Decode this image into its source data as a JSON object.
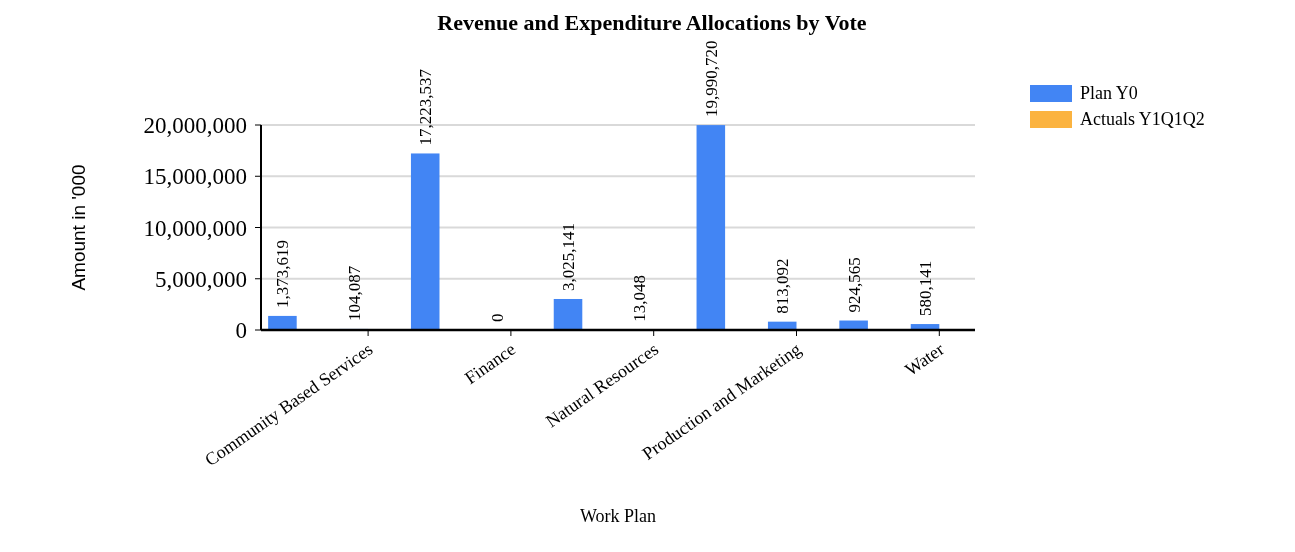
{
  "chart_data": {
    "type": "bar",
    "title": "Revenue and Expenditure Allocations by Vote",
    "xlabel": "Work Plan",
    "ylabel": "Amount in '000",
    "categories": [
      null,
      "Community Based Services",
      null,
      "Finance",
      null,
      "Natural Resources",
      null,
      "Production and Marketing",
      null,
      "Water"
    ],
    "series": [
      {
        "name": "Plan Y0",
        "color": "#4285f4",
        "values": [
          1373619,
          104087,
          17223537,
          0,
          3025141,
          13048,
          19990720,
          813092,
          924565,
          580141
        ],
        "value_labels": [
          "1,373,619",
          "104,087",
          "17,223,537",
          "0",
          "3,025,141",
          "13,048",
          "19,990,720",
          "813,092",
          "924,565",
          "580,141"
        ]
      },
      {
        "name": "Actuals Y1Q1Q2",
        "color": "#fbb340",
        "values": [
          null,
          null,
          null,
          null,
          null,
          null,
          null,
          null,
          null,
          null
        ]
      }
    ],
    "ylim": [
      0,
      20000000
    ],
    "yticks": [
      {
        "value": 0,
        "label": "0"
      },
      {
        "value": 5000000,
        "label": "5,000,000"
      },
      {
        "value": 10000000,
        "label": "10,000,000"
      },
      {
        "value": 15000000,
        "label": "15,000,000"
      },
      {
        "value": 20000000,
        "label": "20,000,000"
      }
    ],
    "grid": "y",
    "legend": "right"
  }
}
